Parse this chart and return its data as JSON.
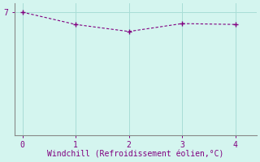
{
  "x": [
    0,
    1,
    2,
    3,
    4
  ],
  "y": [
    7.0,
    6.3,
    5.9,
    6.35,
    6.3
  ],
  "line_color": "#800080",
  "marker": "P",
  "marker_size": 3,
  "background_color": "#d4f5ef",
  "grid_color": "#a8ddd6",
  "axis_color": "#888888",
  "xlabel": "Windchill (Refroidissement éolien,°C)",
  "xlabel_color": "#800080",
  "xlabel_fontsize": 7,
  "tick_color": "#800080",
  "tick_fontsize": 7,
  "ytick_labels": [
    "7"
  ],
  "ytick_values": [
    7.0
  ],
  "xlim": [
    -0.15,
    4.4
  ],
  "ylim": [
    0,
    7.5
  ],
  "figsize": [
    3.2,
    2.0
  ],
  "dpi": 100
}
